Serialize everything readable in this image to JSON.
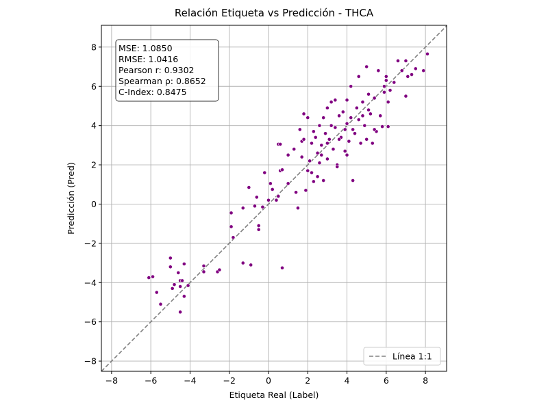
{
  "chart_data": {
    "type": "scatter",
    "title": "Relación Etiqueta vs Predicción - THCA",
    "xlabel": "Etiqueta Real (Label)",
    "ylabel": "Predicción (Pred)",
    "xlim": [
      -8.52,
      9.08
    ],
    "ylim": [
      -8.52,
      9.11
    ],
    "xticks": [
      {
        "value": -8,
        "label": "−8"
      },
      {
        "value": -6,
        "label": "−6"
      },
      {
        "value": -4,
        "label": "−4"
      },
      {
        "value": -2,
        "label": "−2"
      },
      0,
      2,
      4,
      6,
      8
    ],
    "yticks": [
      {
        "value": -8,
        "label": "−8"
      },
      {
        "value": -6,
        "label": "−6"
      },
      {
        "value": -4,
        "label": "−4"
      },
      {
        "value": -2,
        "label": "−2"
      },
      0,
      2,
      4,
      6,
      8
    ],
    "grid": true,
    "color": "#800080",
    "reference_line": {
      "name": "Línea 1:1",
      "color": "#808080"
    },
    "legend_position": "lower right",
    "annotation": [
      "MSE: 1.0850",
      "RMSE: 1.0416",
      "Pearson r: 0.9302",
      "Spearman ρ: 0.8652",
      "C-Index: 0.8475"
    ],
    "x": [
      -6.1,
      -5.9,
      -5.7,
      -5.5,
      -5.0,
      -5.0,
      -4.9,
      -4.8,
      -4.6,
      -4.5,
      -4.4,
      -4.5,
      -4.3,
      -4.3,
      -4.5,
      -4.1,
      -3.3,
      -3.3,
      -2.6,
      -2.5,
      -1.9,
      -1.9,
      -1.8,
      -1.3,
      -1.3,
      -0.9,
      -1.0,
      -0.7,
      -0.6,
      -0.5,
      -0.5,
      -0.3,
      -0.2,
      0.0,
      0.1,
      0.2,
      0.4,
      0.5,
      0.5,
      0.6,
      0.6,
      0.7,
      0.7,
      1.0,
      1.0,
      1.3,
      1.4,
      1.5,
      1.6,
      1.7,
      1.7,
      1.8,
      1.8,
      1.9,
      2.0,
      2.0,
      2.1,
      2.2,
      2.2,
      2.3,
      2.4,
      2.5,
      2.5,
      2.6,
      2.7,
      2.7,
      2.8,
      2.8,
      2.9,
      3.0,
      3.0,
      3.1,
      3.2,
      3.3,
      3.4,
      3.4,
      3.5,
      3.5,
      3.6,
      3.7,
      3.8,
      3.9,
      3.9,
      4.0,
      4.0,
      4.1,
      4.2,
      4.2,
      4.3,
      4.4,
      4.5,
      4.6,
      4.7,
      4.8,
      4.9,
      5.0,
      5.0,
      5.1,
      5.2,
      5.3,
      5.4,
      5.5,
      5.6,
      5.7,
      5.8,
      5.9,
      6.0,
      6.1,
      6.2,
      6.4,
      6.6,
      6.8,
      7.0,
      7.0,
      7.1,
      7.3,
      7.5,
      7.9,
      8.1,
      4.6,
      3.2,
      2.3,
      3.6,
      4.3,
      5.1,
      5.4,
      4.0,
      2.6,
      5.9,
      6.1,
      6.0,
      3.0,
      4.8
    ],
    "values": [
      -3.75,
      -3.7,
      -4.5,
      -5.1,
      -2.75,
      -3.2,
      -4.3,
      -4.1,
      -3.5,
      -3.9,
      -3.9,
      -4.2,
      -3.05,
      -4.7,
      -5.5,
      -4.15,
      -3.15,
      -3.45,
      -3.45,
      -3.35,
      -0.45,
      -1.15,
      -1.7,
      -0.2,
      -3.0,
      -3.1,
      0.85,
      -0.1,
      0.35,
      -1.1,
      -1.3,
      -0.15,
      1.6,
      0.2,
      1.05,
      0.75,
      0.2,
      0.4,
      3.05,
      3.05,
      1.7,
      1.75,
      -3.25,
      2.5,
      1.05,
      2.8,
      0.6,
      -0.2,
      3.8,
      2.4,
      3.2,
      3.3,
      4.6,
      0.7,
      4.4,
      1.7,
      2.2,
      1.6,
      3.1,
      1.15,
      3.4,
      2.6,
      1.4,
      4.0,
      3.0,
      2.5,
      4.4,
      1.2,
      3.6,
      4.9,
      2.3,
      3.3,
      5.2,
      2.8,
      3.9,
      5.3,
      2.0,
      1.9,
      4.5,
      3.4,
      4.7,
      3.8,
      2.7,
      5.3,
      4.1,
      3.2,
      6.0,
      4.4,
      1.2,
      3.6,
      4.9,
      4.3,
      3.1,
      5.2,
      4.0,
      7.0,
      3.3,
      5.6,
      4.6,
      3.1,
      5.4,
      3.7,
      6.8,
      4.5,
      3.95,
      5.7,
      6.5,
      5.2,
      5.8,
      6.2,
      7.3,
      6.8,
      7.3,
      5.5,
      6.5,
      6.6,
      6.9,
      6.8,
      7.65,
      6.5,
      4.0,
      3.7,
      3.3,
      3.8,
      4.8,
      3.8,
      2.5,
      2.1,
      6.0,
      3.95,
      6.3,
      3.1,
      4.5
    ]
  }
}
